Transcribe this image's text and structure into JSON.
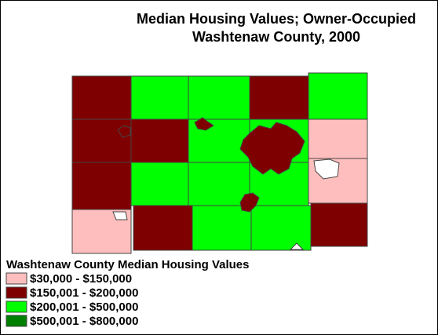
{
  "header": {
    "title_line1": "Median Housing Values; Owner-Occupied",
    "title_line2": "Washtenaw County, 2000"
  },
  "legend": {
    "title": "Washtenaw County Median Housing Values",
    "items": [
      {
        "label": "$30,000 - $150,000",
        "color": "#ffbebe"
      },
      {
        "label": "$150,001 - $200,000",
        "color": "#7f0000"
      },
      {
        "label": "$200,001 - $500,000",
        "color": "#00ff00"
      },
      {
        "label": "$500,001 - $800,000",
        "color": "#008000"
      }
    ]
  }
}
